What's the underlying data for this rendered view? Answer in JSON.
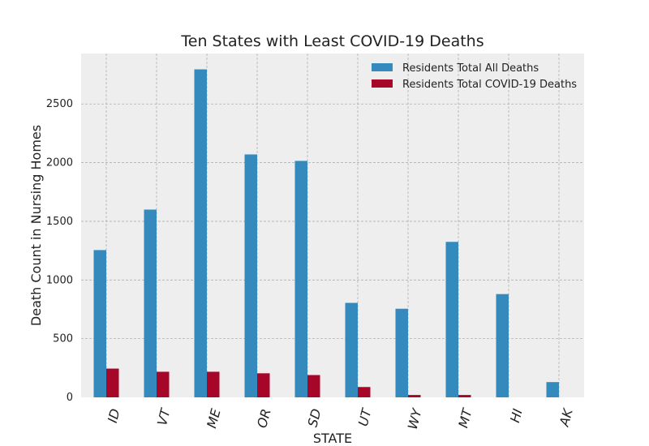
{
  "chart_data": {
    "type": "bar",
    "title": "Ten States with Least COVID-19 Deaths",
    "xlabel": "STATE",
    "ylabel": "Death Count in Nursing Homes",
    "categories": [
      "ID",
      "VT",
      "ME",
      "OR",
      "SD",
      "UT",
      "WY",
      "MT",
      "HI",
      "AK"
    ],
    "series": [
      {
        "name": "Residents Total All Deaths",
        "color": "#348abd",
        "values": [
          1255,
          1600,
          2795,
          2070,
          2015,
          805,
          755,
          1325,
          880,
          130
        ]
      },
      {
        "name": "Residents Total COVID-19 Deaths",
        "color": "#a60628",
        "values": [
          245,
          218,
          218,
          205,
          190,
          88,
          20,
          20,
          0,
          0
        ]
      }
    ],
    "yticks": [
      0,
      500,
      1000,
      1500,
      2000,
      2500
    ],
    "ylim": [
      0,
      2930
    ],
    "grid": true,
    "legend": "top-right",
    "background": "#eeeeee"
  }
}
